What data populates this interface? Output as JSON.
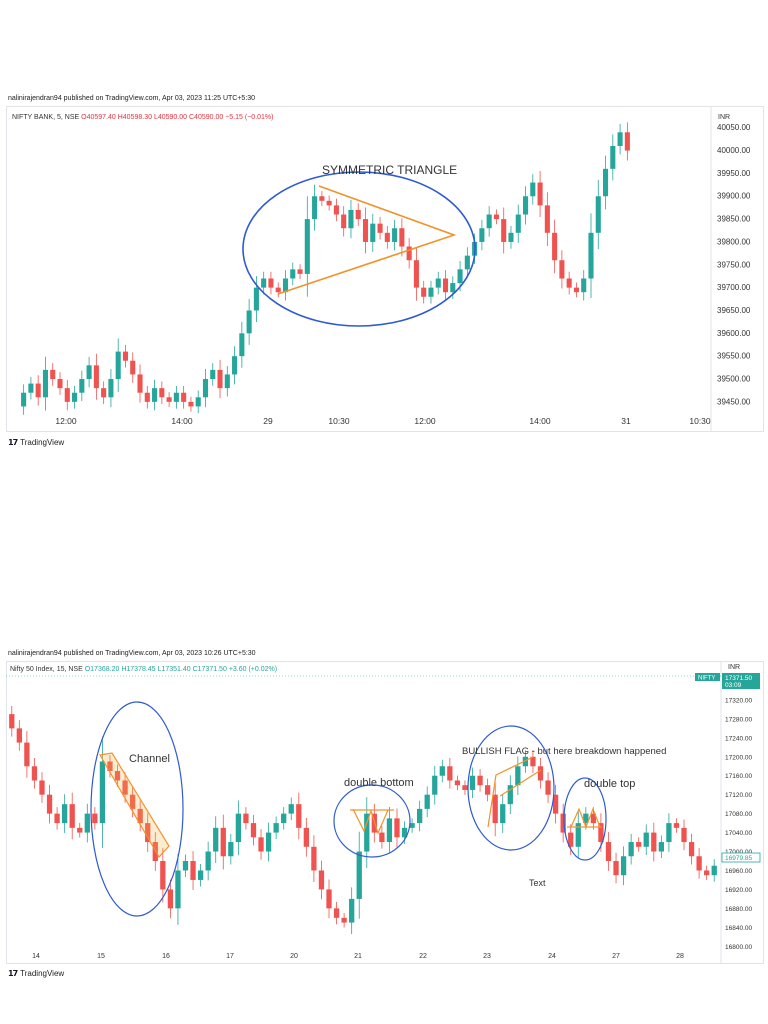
{
  "chart_data": [
    {
      "type": "candlestick",
      "caption": "nalinirajendran94 published on TradingView.com, Apr 03, 2023 11:25 UTC+5:30",
      "legend": {
        "symbol": "NIFTY BANK, 5, NSE",
        "open": "O40597.40",
        "high": "H40598.30",
        "low": "L40590.00",
        "close": "C40590.00",
        "change": "−5.15 (−0.01%)"
      },
      "currency": "INR",
      "y_ticks": [
        "40050.00",
        "40000.00",
        "39950.00",
        "39900.00",
        "39850.00",
        "39800.00",
        "39750.00",
        "39700.00",
        "39650.00",
        "39600.00",
        "39550.00",
        "39500.00",
        "39450.00"
      ],
      "y_values": [
        40050,
        40000,
        39950,
        39900,
        39850,
        39800,
        39750,
        39700,
        39650,
        39600,
        39550,
        39500,
        39450
      ],
      "ylim": [
        39430,
        40080
      ],
      "x_ticks": [
        "12:00",
        "14:00",
        "29",
        "10:30",
        "12:00",
        "14:00",
        "31",
        "10:30"
      ],
      "annotations": [
        {
          "kind": "ellipse",
          "color": "#2f5bd0"
        },
        {
          "kind": "triangle",
          "color": "#f2922b"
        },
        {
          "kind": "text",
          "text": "SYMMETRIC TRIANGLE"
        }
      ],
      "path": [
        39440,
        39470,
        39490,
        39460,
        39520,
        39500,
        39480,
        39450,
        39470,
        39500,
        39530,
        39480,
        39460,
        39500,
        39560,
        39540,
        39510,
        39470,
        39450,
        39480,
        39460,
        39450,
        39470,
        39450,
        39440,
        39460,
        39500,
        39520,
        39480,
        39510,
        39550,
        39600,
        39650,
        39700,
        39720,
        39700,
        39690,
        39720,
        39740,
        39730,
        39850,
        39900,
        39890,
        39880,
        39860,
        39830,
        39870,
        39850,
        39800,
        39840,
        39820,
        39800,
        39830,
        39790,
        39760,
        39700,
        39680,
        39700,
        39720,
        39690,
        39710,
        39740,
        39770,
        39800,
        39830,
        39860,
        39850,
        39800,
        39820,
        39860,
        39900,
        39930,
        39880,
        39820,
        39760,
        39720,
        39700,
        39690,
        39720,
        39820,
        39900,
        39960,
        40010,
        40040,
        40000
      ]
    },
    {
      "type": "candlestick",
      "caption": "nalinirajendran94 published on TradingView.com, Apr 03, 2023 10:26 UTC+5:30",
      "legend": {
        "symbol": "Nifty 50 Index, 15, NSE",
        "open": "O17368.20",
        "high": "H17378.45",
        "low": "L17351.40",
        "close": "C17371.50",
        "change": "+3.60 (+0.02%)"
      },
      "currency": "INR",
      "badge": {
        "symbol": "NIFTY",
        "price": "17371.50",
        "time": "03:09"
      },
      "last_price_label": "16979.85",
      "y_ticks": [
        "17320.00",
        "17280.00",
        "17240.00",
        "17200.00",
        "17160.00",
        "17120.00",
        "17080.00",
        "17040.00",
        "17000.00",
        "16960.00",
        "16920.00",
        "16880.00",
        "16840.00",
        "16800.00"
      ],
      "y_values": [
        17320,
        17280,
        17240,
        17200,
        17160,
        17120,
        17080,
        17040,
        17000,
        16960,
        16920,
        16880,
        16840,
        16800
      ],
      "ylim": [
        16790,
        17360
      ],
      "x_ticks": [
        "14",
        "15",
        "16",
        "17",
        "20",
        "21",
        "22",
        "23",
        "24",
        "27",
        "28"
      ],
      "annotations": [
        {
          "kind": "text",
          "text": "Channel"
        },
        {
          "kind": "text",
          "text": "double bottom"
        },
        {
          "kind": "text",
          "text": "BULLISH FLAG - but here breakdown happened"
        },
        {
          "kind": "text",
          "text": "double top"
        },
        {
          "kind": "text",
          "text": "Text"
        }
      ],
      "path": [
        17290,
        17260,
        17230,
        17180,
        17150,
        17120,
        17080,
        17060,
        17100,
        17050,
        17040,
        17080,
        17060,
        17190,
        17170,
        17150,
        17120,
        17090,
        17060,
        17020,
        16980,
        16920,
        16880,
        16960,
        16980,
        16940,
        16960,
        17000,
        17050,
        16990,
        17020,
        17080,
        17060,
        17030,
        17000,
        17040,
        17060,
        17080,
        17100,
        17050,
        17010,
        16960,
        16920,
        16880,
        16860,
        16850,
        16900,
        17000,
        17080,
        17040,
        17020,
        17070,
        17030,
        17050,
        17060,
        17090,
        17120,
        17160,
        17180,
        17150,
        17140,
        17130,
        17160,
        17140,
        17120,
        17060,
        17100,
        17140,
        17180,
        17200,
        17180,
        17150,
        17120,
        17080,
        17040,
        17010,
        17060,
        17080,
        17060,
        17020,
        16980,
        16950,
        16990,
        17020,
        17010,
        17040,
        17000,
        17020,
        17060,
        17050,
        17020,
        16990,
        16960,
        16950,
        16970
      ]
    }
  ]
}
